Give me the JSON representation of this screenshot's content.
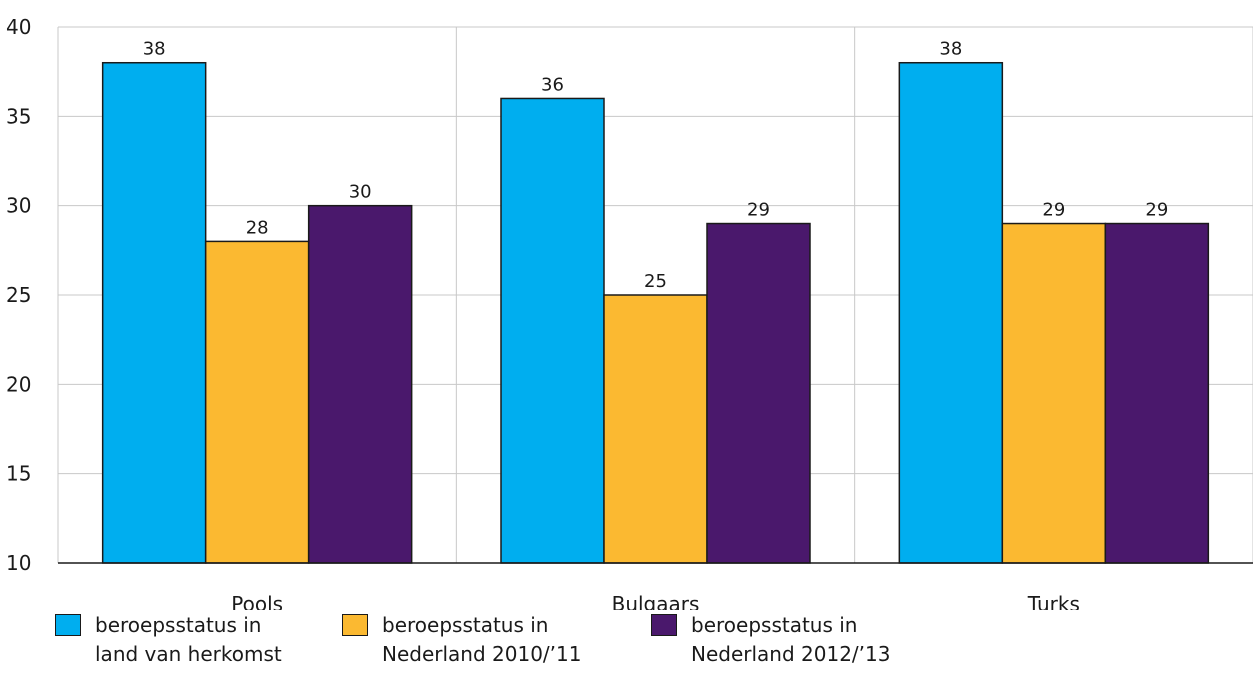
{
  "chart_data": {
    "type": "bar",
    "categories": [
      "Pools",
      "Bulgaars",
      "Turks"
    ],
    "series": [
      {
        "name": "beroepsstatus in\nland van herkomst",
        "color": "#00AEEF",
        "values": [
          38,
          36,
          38
        ]
      },
      {
        "name": "beroepsstatus in\nNederland 2010/’11",
        "color": "#FBB931",
        "values": [
          28,
          25,
          29
        ]
      },
      {
        "name": "beroepsstatus in\nNederland 2012/’13",
        "color": "#4A186C",
        "values": [
          30,
          29,
          29
        ]
      }
    ],
    "yticks": [
      "10",
      "15",
      "20",
      "25",
      "30",
      "35",
      "40"
    ],
    "ylim": [
      10,
      40
    ],
    "grid": true,
    "legend_position": "bottom",
    "title": "",
    "xlabel": "",
    "ylabel": ""
  }
}
